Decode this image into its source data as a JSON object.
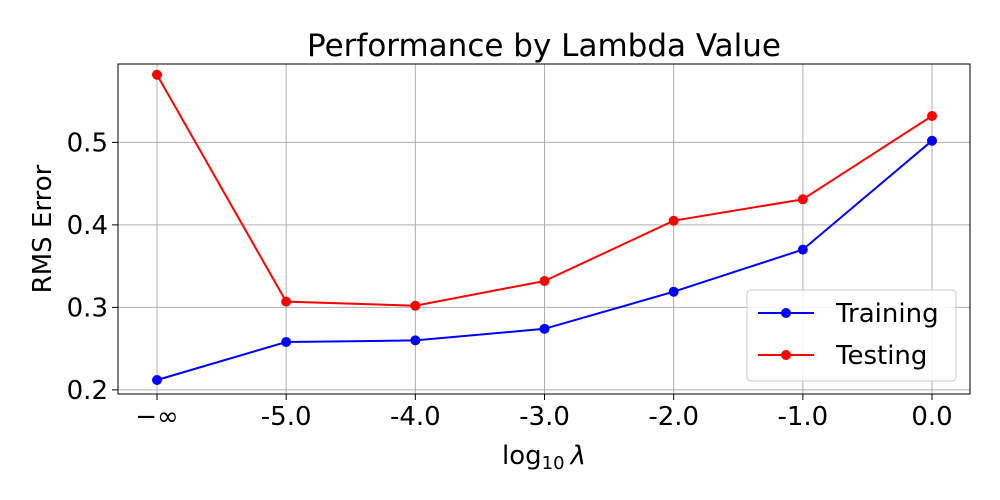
{
  "chart_data": {
    "type": "line",
    "title": "Performance by Lambda Value",
    "xlabel": "log",
    "xlabel_subscript": "10",
    "xlabel_symbol": "λ",
    "ylabel": "RMS Error",
    "categories": [
      "−∞",
      "-5.0",
      "-4.0",
      "-3.0",
      "-2.0",
      "-1.0",
      "0.0"
    ],
    "y_ticks": [
      0.2,
      0.3,
      0.4,
      0.5
    ],
    "y_tick_labels": [
      "0.2",
      "0.3",
      "0.4",
      "0.5"
    ],
    "ylim": [
      0.195,
      0.595
    ],
    "grid": true,
    "legend_position": "lower-right",
    "series": [
      {
        "name": "Training",
        "color": "#0000ff",
        "values": [
          0.212,
          0.258,
          0.26,
          0.274,
          0.319,
          0.37,
          0.502
        ]
      },
      {
        "name": "Testing",
        "color": "#ff0000",
        "values": [
          0.582,
          0.307,
          0.302,
          0.332,
          0.405,
          0.431,
          0.532
        ]
      }
    ]
  }
}
